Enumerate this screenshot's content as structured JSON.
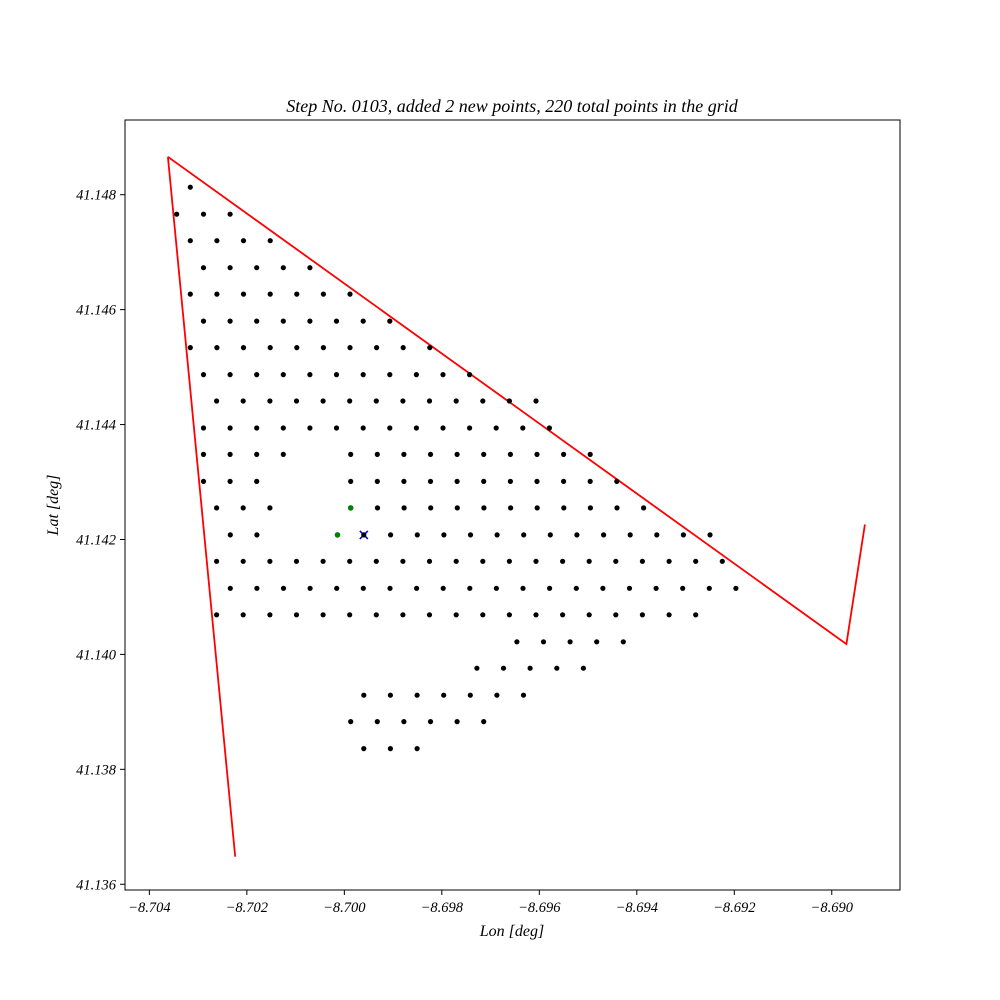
{
  "chart_data": {
    "type": "scatter",
    "title": "Step No. 0103, added 2 new points, 220 total points in the grid",
    "xlabel": "Lon [deg]",
    "ylabel": "Lat [deg]",
    "xlim": [
      -8.7045,
      -8.6886
    ],
    "ylim": [
      41.1359,
      41.1493
    ],
    "xticks": [
      -8.704,
      -8.702,
      -8.7,
      -8.698,
      -8.696,
      -8.694,
      -8.692,
      -8.69
    ],
    "xtick_labels": [
      "−8.704",
      "−8.702",
      "−8.700",
      "−8.698",
      "−8.696",
      "−8.694",
      "−8.692",
      "−8.690"
    ],
    "yticks": [
      41.136,
      41.138,
      41.14,
      41.142,
      41.144,
      41.146,
      41.148
    ],
    "ytick_labels": [
      "41.136",
      "41.138",
      "41.140",
      "41.142",
      "41.144",
      "41.146",
      "41.148"
    ],
    "grid": false,
    "colors": {
      "boundary": "#ff0000",
      "grid_points": "#000000",
      "new_points": "#008000",
      "current_point": "#0000ff"
    },
    "grid_rows": [
      {
        "lat": 41.14813,
        "lon_start": -8.70316,
        "count": 1
      },
      {
        "lat": 41.14766,
        "lon_start": -8.70344,
        "count": 1
      },
      {
        "lat": 41.14766,
        "lon_start": -8.70289,
        "count": 2
      },
      {
        "lat": 41.1472,
        "lon_start": -8.70316,
        "count": 4
      },
      {
        "lat": 41.14673,
        "lon_start": -8.70289,
        "count": 5
      },
      {
        "lat": 41.14627,
        "lon_start": -8.70316,
        "count": 7
      },
      {
        "lat": 41.1458,
        "lon_start": -8.70289,
        "count": 8
      },
      {
        "lat": 41.14534,
        "lon_start": -8.70316,
        "count": 10
      },
      {
        "lat": 41.14487,
        "lon_start": -8.70289,
        "count": 11
      },
      {
        "lat": 41.14441,
        "lon_start": -8.70262,
        "count": 13
      },
      {
        "lat": 41.14394,
        "lon_start": -8.70289,
        "count": 14
      },
      {
        "lat": 41.14348,
        "lon_start": -8.70289,
        "count": 4
      },
      {
        "lat": 41.14348,
        "lon_start": -8.69987,
        "count": 10
      },
      {
        "lat": 41.14255,
        "lon_start": -8.70262,
        "count": 3
      },
      {
        "lat": 41.14255,
        "lon_start": -8.69932,
        "count": 11
      },
      {
        "lat": 41.14208,
        "lon_start": -8.70234,
        "count": 2
      },
      {
        "lat": 41.14208,
        "lon_start": -8.69905,
        "count": 13
      },
      {
        "lat": 41.14162,
        "lon_start": -8.70262,
        "count": 20
      },
      {
        "lat": 41.14115,
        "lon_start": -8.70234,
        "count": 20
      },
      {
        "lat": 41.14069,
        "lon_start": -8.70262,
        "count": 19
      },
      {
        "lat": 41.14022,
        "lon_start": -8.69646,
        "count": 5
      },
      {
        "lat": 41.13976,
        "lon_start": -8.69728,
        "count": 5
      },
      {
        "lat": 41.13929,
        "lon_start": -8.6996,
        "count": 7
      },
      {
        "lat": 41.13883,
        "lon_start": -8.69987,
        "count": 6
      },
      {
        "lat": 41.13836,
        "lon_start": -8.6996,
        "count": 3
      }
    ],
    "grid_row_partial_3": {
      "lat": 41.14301,
      "lon_start": -8.70289,
      "count": 3,
      "lon_start_2": -8.69987,
      "count_2": 11
    },
    "grid_lon_step": 0.000546,
    "new_points": [
      {
        "lon": -8.69987,
        "lat": 41.14255
      },
      {
        "lon": -8.70014,
        "lat": 41.14208
      }
    ],
    "current_point": {
      "lon": -8.6996,
      "lat": 41.14208
    },
    "boundary": [
      {
        "lon": -8.70362,
        "lat": 41.14866
      },
      {
        "lon": -8.70224,
        "lat": 41.13648
      }
    ],
    "boundary_2": [
      {
        "lon": -8.70362,
        "lat": 41.14866
      },
      {
        "lon": -8.6897,
        "lat": 41.14018
      },
      {
        "lon": -8.68932,
        "lat": 41.14226
      }
    ]
  }
}
